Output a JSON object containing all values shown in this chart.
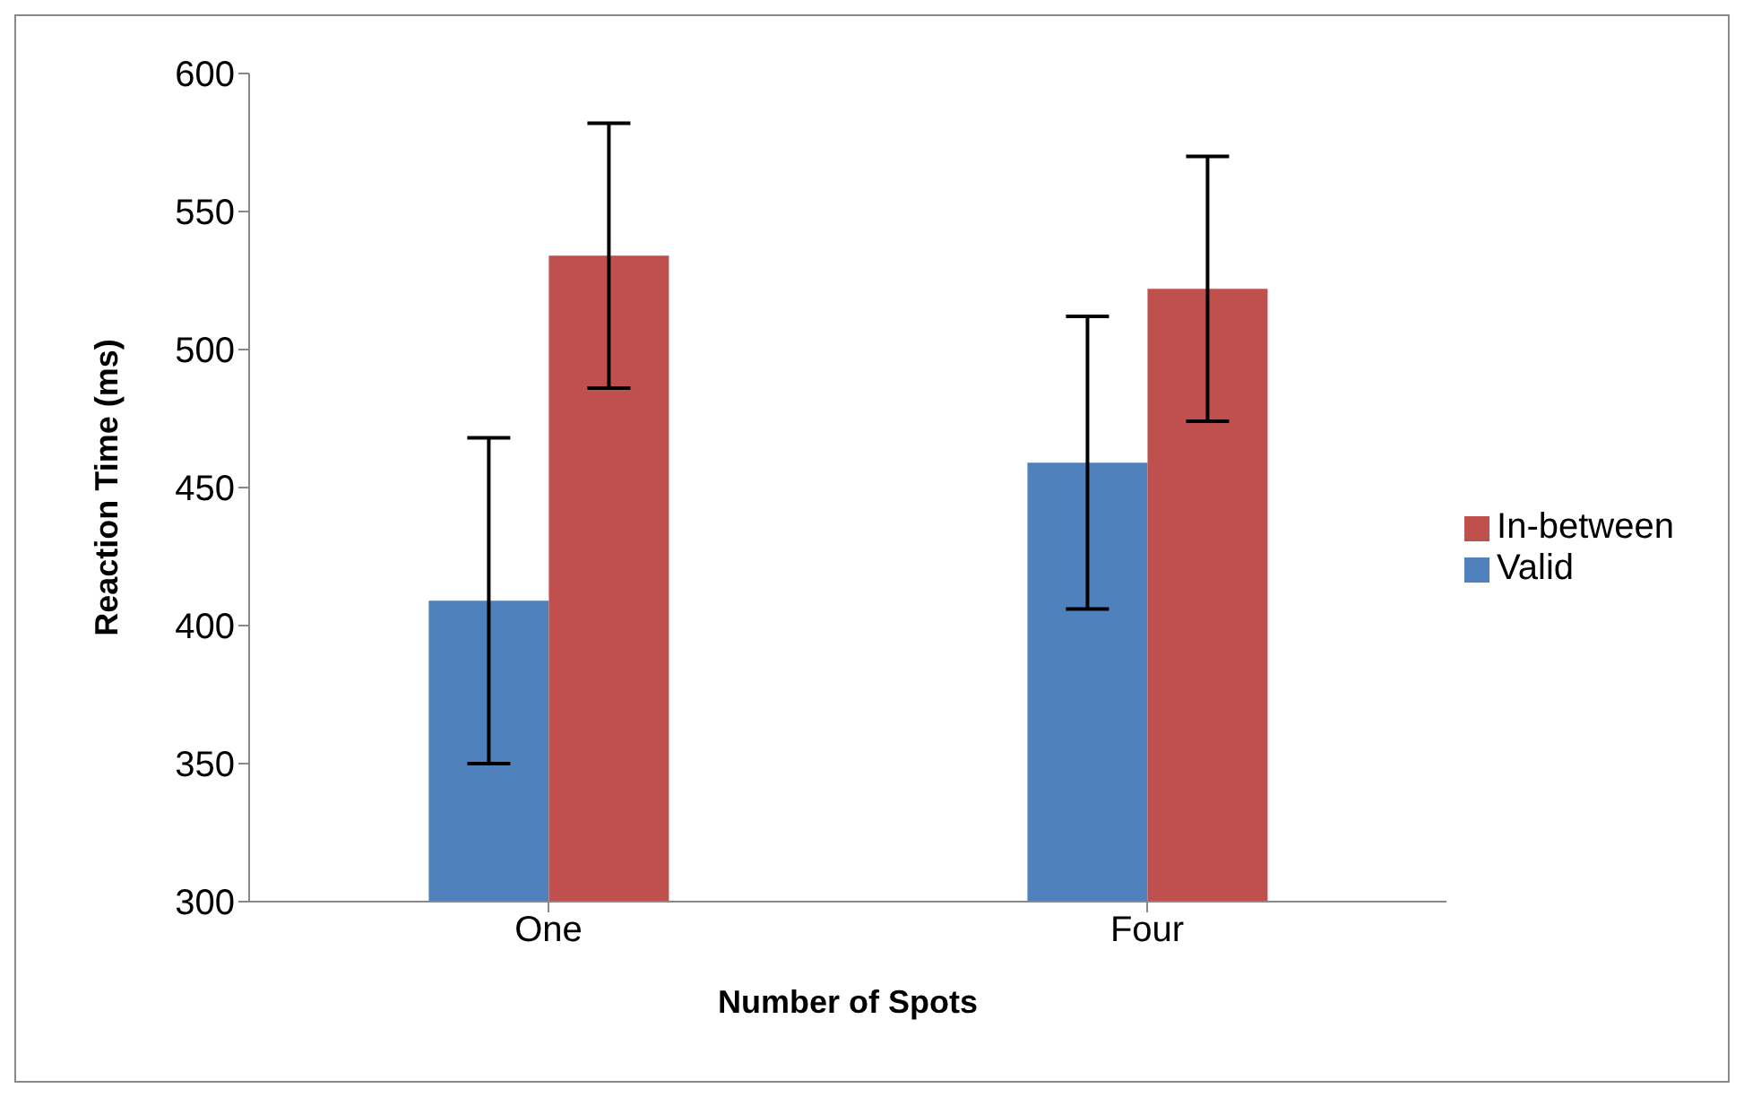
{
  "chart_data": {
    "type": "bar",
    "xlabel": "Number of Spots",
    "ylabel": "Reaction Time (ms)",
    "categories": [
      "One",
      "Four"
    ],
    "series": [
      {
        "name": "Valid",
        "color": "#4f81bd",
        "values": [
          409,
          459
        ],
        "errors": [
          59,
          53
        ]
      },
      {
        "name": "In-between",
        "color": "#c0504d",
        "values": [
          534,
          522
        ],
        "errors": [
          48,
          48
        ]
      }
    ],
    "ylim": [
      300,
      600
    ],
    "yticks": [
      300,
      350,
      400,
      450,
      500,
      550,
      600
    ],
    "grid": false,
    "legend": "right"
  }
}
